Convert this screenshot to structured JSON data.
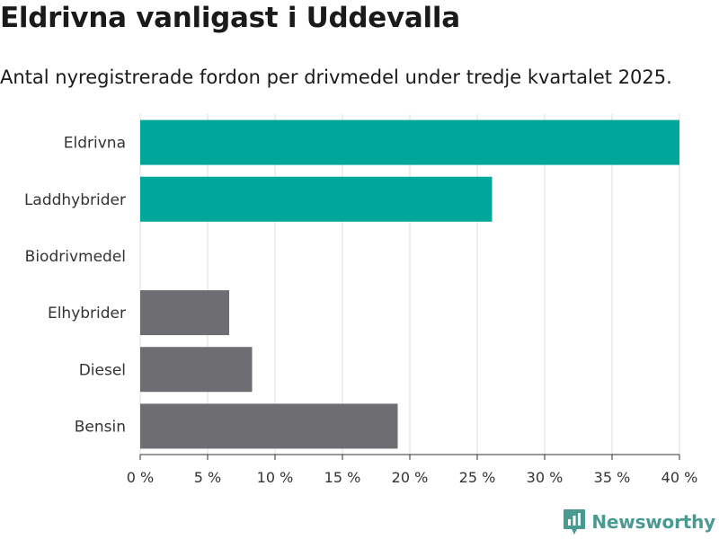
{
  "title": "Eldrivna vanligast i Uddevalla",
  "subtitle": "Antal nyregistrerade fordon per drivmedel under tredje kvartalet 2025.",
  "brand": "Newsworthy",
  "chart_data": {
    "type": "bar",
    "orientation": "horizontal",
    "categories": [
      "Eldrivna",
      "Laddhybrider",
      "Biodrivmedel",
      "Elhybrider",
      "Diesel",
      "Bensin"
    ],
    "values": [
      40.0,
      26.1,
      0,
      6.6,
      8.3,
      19.1
    ],
    "unit": "%",
    "xlim": [
      0,
      40
    ],
    "xticks": [
      0,
      5,
      10,
      15,
      20,
      25,
      30,
      35,
      40
    ],
    "tick_labels": [
      "0 %",
      "5 %",
      "10 %",
      "15 %",
      "20 %",
      "25 %",
      "30 %",
      "35 %",
      "40 %"
    ],
    "grid": true,
    "colors": {
      "highlight": "#00a69a",
      "default": "#6e6d72",
      "grid": "#dddddd",
      "axis": "#333333"
    },
    "highlight_categories": [
      "Eldrivna",
      "Laddhybrider"
    ]
  }
}
